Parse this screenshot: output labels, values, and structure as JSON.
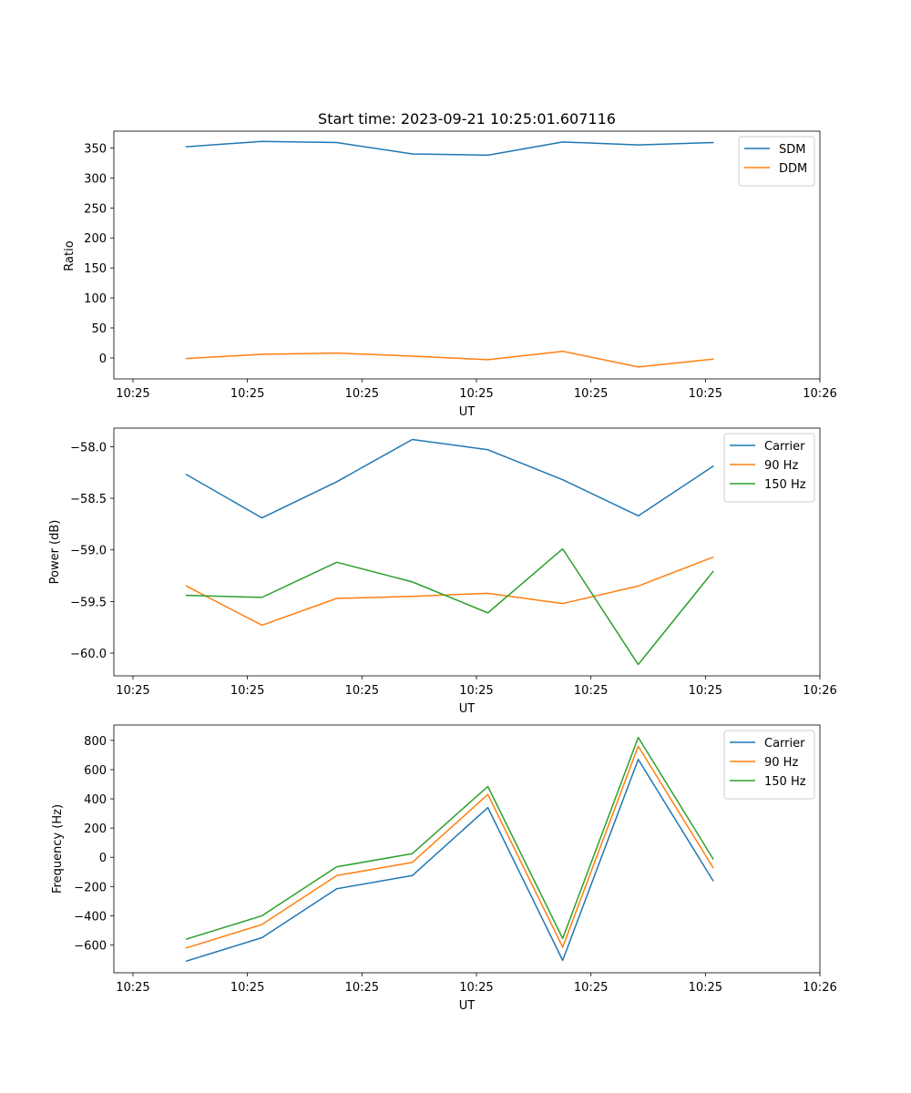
{
  "chart_data": [
    {
      "type": "line",
      "title": "Start time: 2023-09-21 10:25:01.607116",
      "xlabel": "UT",
      "ylabel": "Ratio",
      "xlim": [
        -0.35,
        8.9
      ],
      "ylim": [
        -35,
        378
      ],
      "x_ticks": [
        {
          "x": -0.1,
          "label": "10:25"
        },
        {
          "x": 1.4,
          "label": "10:25"
        },
        {
          "x": 2.9,
          "label": "10:25"
        },
        {
          "x": 4.4,
          "label": "10:25"
        },
        {
          "x": 5.9,
          "label": "10:25"
        },
        {
          "x": 7.4,
          "label": "10:25"
        },
        {
          "x": 8.9,
          "label": "10:26"
        }
      ],
      "y_ticks": [
        {
          "y": 0,
          "label": "0"
        },
        {
          "y": 50,
          "label": "50"
        },
        {
          "y": 100,
          "label": "100"
        },
        {
          "y": 150,
          "label": "150"
        },
        {
          "y": 200,
          "label": "200"
        },
        {
          "y": 250,
          "label": "250"
        },
        {
          "y": 300,
          "label": "300"
        },
        {
          "y": 350,
          "label": "350"
        }
      ],
      "x": [
        0.6,
        1.59,
        2.57,
        3.56,
        4.55,
        5.53,
        6.52,
        7.5
      ],
      "series": [
        {
          "name": "SDM",
          "color": "#1f77b4",
          "values": [
            352,
            361,
            359,
            340,
            338,
            360,
            355,
            359
          ]
        },
        {
          "name": "DDM",
          "color": "#ff7f0e",
          "values": [
            -1,
            6,
            8,
            3,
            -3,
            11,
            -15,
            -2
          ]
        }
      ],
      "legend": "top-right",
      "grid": false
    },
    {
      "type": "line",
      "title": "",
      "xlabel": "UT",
      "ylabel": "Power (dB)",
      "xlim": [
        -0.35,
        8.9
      ],
      "ylim": [
        -60.22,
        -57.82
      ],
      "x_ticks": [
        {
          "x": -0.1,
          "label": "10:25"
        },
        {
          "x": 1.4,
          "label": "10:25"
        },
        {
          "x": 2.9,
          "label": "10:25"
        },
        {
          "x": 4.4,
          "label": "10:25"
        },
        {
          "x": 5.9,
          "label": "10:25"
        },
        {
          "x": 7.4,
          "label": "10:25"
        },
        {
          "x": 8.9,
          "label": "10:26"
        }
      ],
      "y_ticks": [
        {
          "y": -60.0,
          "label": "−60.0"
        },
        {
          "y": -59.5,
          "label": "−59.5"
        },
        {
          "y": -59.0,
          "label": "−59.0"
        },
        {
          "y": -58.5,
          "label": "−58.5"
        },
        {
          "y": -58.0,
          "label": "−58.0"
        }
      ],
      "x": [
        0.6,
        1.59,
        2.57,
        3.56,
        4.55,
        5.53,
        6.52,
        7.5
      ],
      "series": [
        {
          "name": "Carrier",
          "color": "#1f77b4",
          "values": [
            -58.27,
            -58.69,
            -58.34,
            -57.93,
            -58.03,
            -58.32,
            -58.67,
            -58.19
          ]
        },
        {
          "name": "90 Hz",
          "color": "#ff7f0e",
          "values": [
            -59.35,
            -59.73,
            -59.47,
            -59.45,
            -59.42,
            -59.52,
            -59.35,
            -59.07
          ]
        },
        {
          "name": "150 Hz",
          "color": "#2ca02c",
          "values": [
            -59.44,
            -59.46,
            -59.12,
            -59.31,
            -59.61,
            -58.99,
            -60.11,
            -59.21
          ]
        }
      ],
      "legend": "top-right",
      "grid": false
    },
    {
      "type": "line",
      "title": "",
      "xlabel": "UT",
      "ylabel": "Frequency (Hz)",
      "xlim": [
        -0.35,
        8.9
      ],
      "ylim": [
        -790,
        905
      ],
      "x_ticks": [
        {
          "x": -0.1,
          "label": "10:25"
        },
        {
          "x": 1.4,
          "label": "10:25"
        },
        {
          "x": 2.9,
          "label": "10:25"
        },
        {
          "x": 4.4,
          "label": "10:25"
        },
        {
          "x": 5.9,
          "label": "10:25"
        },
        {
          "x": 7.4,
          "label": "10:25"
        },
        {
          "x": 8.9,
          "label": "10:26"
        }
      ],
      "y_ticks": [
        {
          "y": -600,
          "label": "−600"
        },
        {
          "y": -400,
          "label": "−400"
        },
        {
          "y": -200,
          "label": "−200"
        },
        {
          "y": 0,
          "label": "0"
        },
        {
          "y": 200,
          "label": "200"
        },
        {
          "y": 400,
          "label": "400"
        },
        {
          "y": 600,
          "label": "600"
        },
        {
          "y": 800,
          "label": "800"
        }
      ],
      "x": [
        0.6,
        1.59,
        2.57,
        3.56,
        4.55,
        5.53,
        6.52,
        7.5
      ],
      "series": [
        {
          "name": "Carrier",
          "color": "#1f77b4",
          "values": [
            -710,
            -550,
            -215,
            -125,
            340,
            -705,
            670,
            -160
          ]
        },
        {
          "name": "90 Hz",
          "color": "#ff7f0e",
          "values": [
            -620,
            -460,
            -125,
            -35,
            430,
            -615,
            760,
            -70
          ]
        },
        {
          "name": "150 Hz",
          "color": "#2ca02c",
          "values": [
            -560,
            -400,
            -65,
            25,
            485,
            -555,
            820,
            -10
          ]
        }
      ],
      "legend": "top-right",
      "grid": false
    }
  ]
}
